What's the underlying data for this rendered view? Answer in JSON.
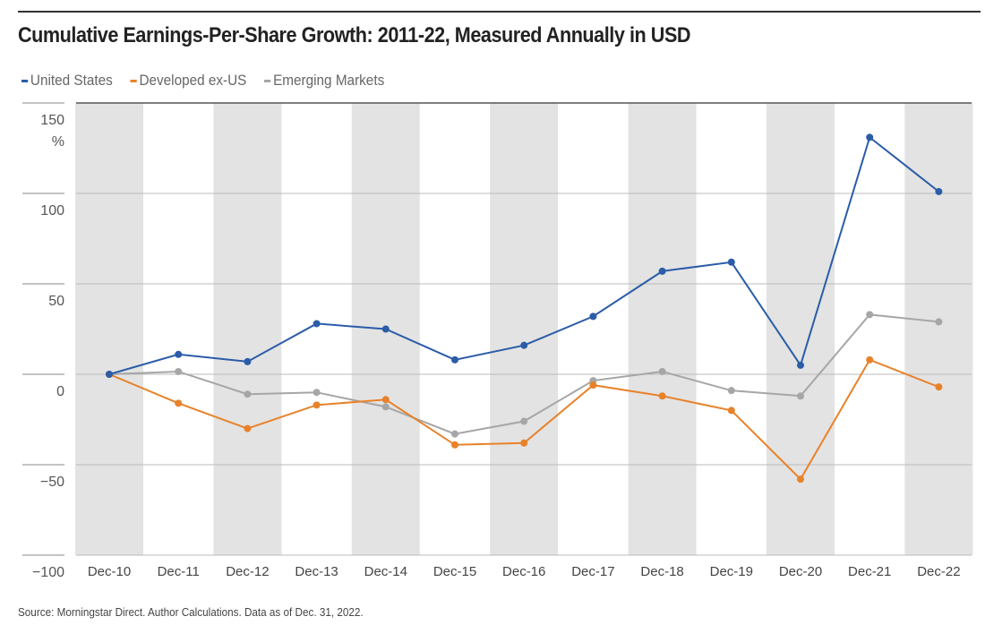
{
  "chart_data": {
    "type": "line",
    "title": "Cumulative Earnings-Per-Share Growth: 2011-22, Measured Annually in USD",
    "ylabel": "%",
    "ylim": [
      -100,
      150
    ],
    "yticks": [
      150,
      100,
      50,
      0,
      -50,
      -100
    ],
    "grid": true,
    "legend": "top-left",
    "categories": [
      "Dec-10",
      "Dec-11",
      "Dec-12",
      "Dec-13",
      "Dec-14",
      "Dec-15",
      "Dec-16",
      "Dec-17",
      "Dec-18",
      "Dec-19",
      "Dec-20",
      "Dec-21",
      "Dec-22"
    ],
    "series": [
      {
        "name": "United States",
        "color": "#2b5ca8",
        "values": [
          0,
          11,
          7,
          28,
          25,
          8,
          16,
          32,
          57,
          62,
          5,
          131,
          101
        ]
      },
      {
        "name": "Developed ex-US",
        "color": "#e8822a",
        "values": [
          0,
          -16,
          -30,
          -17,
          -14,
          -39,
          -38,
          -6,
          -12,
          -20,
          -58,
          8,
          -7
        ]
      },
      {
        "name": "Emerging Markets",
        "color": "#a6a6a6",
        "values": [
          0,
          1.5,
          -11,
          -10,
          -18,
          -33,
          -26,
          -3.5,
          1.5,
          -9,
          -12,
          33,
          29
        ]
      }
    ],
    "source": "Source: Morningstar Direct. Author Calculations. Data as of Dec. 31, 2022."
  }
}
